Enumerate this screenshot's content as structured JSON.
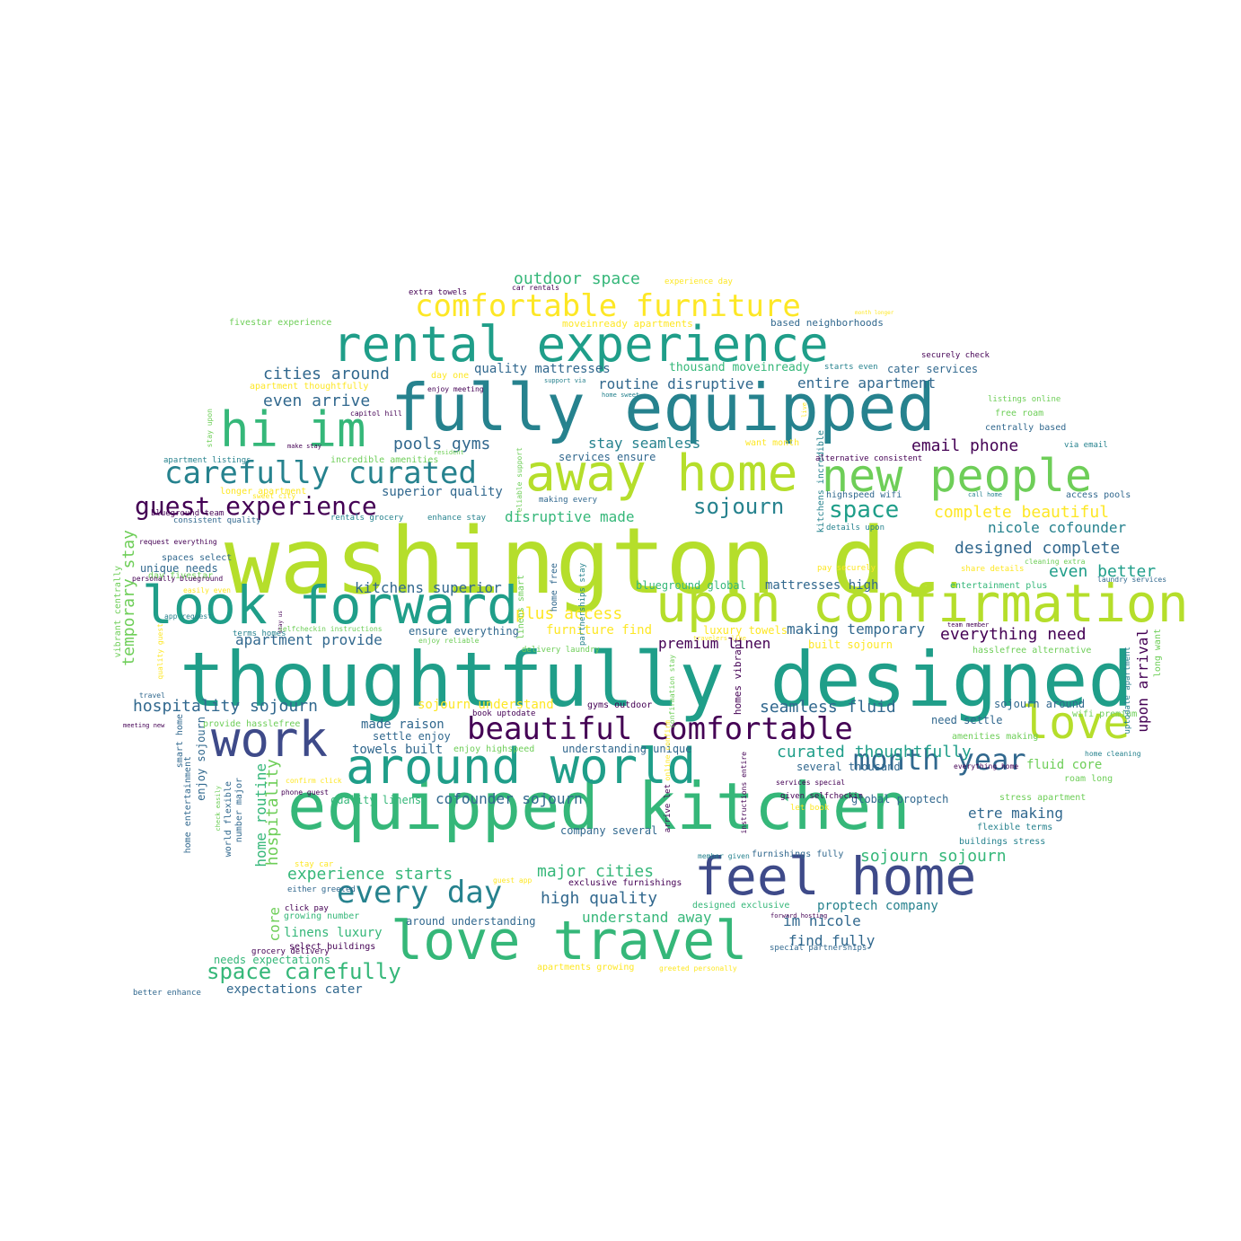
{
  "word_cloud": {
    "palette": {
      "dark_purple": "#440154",
      "indigo": "#3e4a89",
      "blue": "#31688e",
      "teal": "#26828e",
      "green_teal": "#1f9e89",
      "green": "#35b779",
      "light_green": "#6ece58",
      "lime": "#b5de2b",
      "yellow": "#fde725"
    },
    "words": [
      {
        "text": "washington dc",
        "color": "#b5de2b"
      },
      {
        "text": "thoughtfully designed",
        "color": "#1f9e89"
      },
      {
        "text": "fully equipped",
        "color": "#26828e"
      },
      {
        "text": "equipped kitchen",
        "color": "#35b779"
      },
      {
        "text": "rental experience",
        "color": "#1f9e89"
      },
      {
        "text": "around world",
        "color": "#1f9e89"
      },
      {
        "text": "away home",
        "color": "#b5de2b"
      },
      {
        "text": "new people",
        "color": "#6ece58"
      },
      {
        "text": "love travel",
        "color": "#35b779"
      },
      {
        "text": "look forward",
        "color": "#1f9e89"
      },
      {
        "text": "upon confirmation",
        "color": "#b5de2b"
      },
      {
        "text": "feel home",
        "color": "#3e4a89"
      },
      {
        "text": "hi im",
        "color": "#35b779"
      },
      {
        "text": "work",
        "color": "#3e4a89"
      },
      {
        "text": "love",
        "color": "#b5de2b"
      },
      {
        "text": "comfortable furniture",
        "color": "#fde725"
      },
      {
        "text": "beautiful comfortable",
        "color": "#440154"
      },
      {
        "text": "carefully curated",
        "color": "#26828e"
      },
      {
        "text": "guest experience",
        "color": "#440154"
      },
      {
        "text": "month year",
        "color": "#31688e"
      },
      {
        "text": "every day",
        "color": "#26828e"
      },
      {
        "text": "space carefully",
        "color": "#35b779"
      },
      {
        "text": "sojourn",
        "color": "#26828e"
      },
      {
        "text": "space",
        "color": "#1f9e89"
      },
      {
        "text": "outdoor space",
        "color": "#35b779"
      },
      {
        "text": "cities around",
        "color": "#31688e"
      },
      {
        "text": "even arrive",
        "color": "#31688e"
      },
      {
        "text": "pools gyms",
        "color": "#31688e"
      },
      {
        "text": "complete beautiful",
        "color": "#fde725"
      },
      {
        "text": "nicole cofounder",
        "color": "#26828e"
      },
      {
        "text": "designed complete",
        "color": "#31688e"
      },
      {
        "text": "even better",
        "color": "#1f9e89"
      },
      {
        "text": "email phone",
        "color": "#440154"
      },
      {
        "text": "everything need",
        "color": "#440154"
      },
      {
        "text": "seamless fluid",
        "color": "#31688e"
      },
      {
        "text": "curated thoughtfully",
        "color": "#1f9e89"
      },
      {
        "text": "sojourn sojourn",
        "color": "#35b779"
      },
      {
        "text": "hospitality sojourn",
        "color": "#31688e"
      },
      {
        "text": "apartment provide",
        "color": "#31688e"
      },
      {
        "text": "kitchens superior",
        "color": "#31688e"
      },
      {
        "text": "plus access",
        "color": "#fde725"
      },
      {
        "text": "disruptive made",
        "color": "#35b779"
      },
      {
        "text": "superior quality",
        "color": "#31688e"
      },
      {
        "text": "quality mattresses",
        "color": "#31688e"
      },
      {
        "text": "routine disruptive",
        "color": "#31688e"
      },
      {
        "text": "entire apartment",
        "color": "#31688e"
      },
      {
        "text": "stay seamless",
        "color": "#26828e"
      },
      {
        "text": "high quality",
        "color": "#31688e"
      },
      {
        "text": "major cities",
        "color": "#35b779"
      },
      {
        "text": "experience starts",
        "color": "#35b779"
      },
      {
        "text": "understand away",
        "color": "#35b779"
      },
      {
        "text": "im nicole",
        "color": "#31688e"
      },
      {
        "text": "find fully",
        "color": "#31688e"
      },
      {
        "text": "proptech company",
        "color": "#26828e"
      },
      {
        "text": "making temporary",
        "color": "#31688e"
      },
      {
        "text": "mattresses high",
        "color": "#31688e"
      },
      {
        "text": "premium linen",
        "color": "#440154"
      },
      {
        "text": "upon arrival",
        "color": "#440154"
      },
      {
        "text": "hospitality",
        "color": "#6ece58"
      },
      {
        "text": "home routine",
        "color": "#35b779"
      },
      {
        "text": "core",
        "color": "#6ece58"
      },
      {
        "text": "temporary stay",
        "color": "#6ece58"
      },
      {
        "text": "linens luxury",
        "color": "#35b779"
      },
      {
        "text": "expectations cater",
        "color": "#31688e"
      },
      {
        "text": "etre making",
        "color": "#31688e"
      },
      {
        "text": "fluid core",
        "color": "#6ece58"
      },
      {
        "text": "made raison",
        "color": "#31688e"
      },
      {
        "text": "towels built",
        "color": "#31688e"
      },
      {
        "text": "settle enjoy",
        "color": "#31688e"
      },
      {
        "text": "cofounder sojourn",
        "color": "#31688e"
      },
      {
        "text": "quality linens",
        "color": "#35b779"
      },
      {
        "text": "sojourn understand",
        "color": "#fde725"
      },
      {
        "text": "ensure everything",
        "color": "#31688e"
      },
      {
        "text": "furniture find",
        "color": "#fde725"
      },
      {
        "text": "luxury towels",
        "color": "#fde725"
      },
      {
        "text": "services ensure",
        "color": "#31688e"
      },
      {
        "text": "thousand moveinready",
        "color": "#35b779"
      },
      {
        "text": "cater services",
        "color": "#31688e"
      },
      {
        "text": "blueground global",
        "color": "#35b779"
      },
      {
        "text": "unique needs",
        "color": "#31688e"
      },
      {
        "text": "built sojourn",
        "color": "#fde725"
      },
      {
        "text": "need settle",
        "color": "#31688e"
      },
      {
        "text": "several thousand",
        "color": "#31688e"
      },
      {
        "text": "global proptech",
        "color": "#31688e"
      },
      {
        "text": "sojourn around",
        "color": "#31688e"
      },
      {
        "text": "understanding unique",
        "color": "#31688e"
      },
      {
        "text": "company several",
        "color": "#31688e"
      },
      {
        "text": "around understanding",
        "color": "#31688e"
      },
      {
        "text": "needs expectations",
        "color": "#35b779"
      },
      {
        "text": "enjoy sojourn",
        "color": "#31688e"
      },
      {
        "text": "moveinready apartments",
        "color": "#fde725"
      },
      {
        "text": "based neighborhoods",
        "color": "#31688e"
      },
      {
        "text": "fivestar experience",
        "color": "#6ece58"
      },
      {
        "text": "apartment thoughtfully",
        "color": "#fde725"
      },
      {
        "text": "day one",
        "color": "#fde725"
      },
      {
        "text": "want month",
        "color": "#fde725"
      },
      {
        "text": "incredible amenities",
        "color": "#6ece58"
      },
      {
        "text": "making every",
        "color": "#31688e"
      },
      {
        "text": "longer apartment",
        "color": "#fde725"
      },
      {
        "text": "free roam",
        "color": "#6ece58"
      },
      {
        "text": "centrally based",
        "color": "#31688e"
      },
      {
        "text": "hasslefree alternative",
        "color": "#6ece58"
      },
      {
        "text": "long want",
        "color": "#6ece58"
      },
      {
        "text": "roam long",
        "color": "#6ece58"
      },
      {
        "text": "flexible terms",
        "color": "#26828e"
      },
      {
        "text": "buildings stress",
        "color": "#26828e"
      },
      {
        "text": "stress apartment",
        "color": "#6ece58"
      },
      {
        "text": "access pools",
        "color": "#31688e"
      },
      {
        "text": "highspeed wifi",
        "color": "#31688e"
      },
      {
        "text": "amenities making",
        "color": "#6ece58"
      },
      {
        "text": "entertainment plus",
        "color": "#35b779"
      },
      {
        "text": "laundry services",
        "color": "#31688e"
      },
      {
        "text": "wifi premium",
        "color": "#6ece58"
      },
      {
        "text": "spaces select",
        "color": "#31688e"
      },
      {
        "text": "day fivestar",
        "color": "#6ece58"
      },
      {
        "text": "consistent quality",
        "color": "#31688e"
      },
      {
        "text": "blueground team",
        "color": "#440154"
      },
      {
        "text": "rentals grocery",
        "color": "#26828e"
      },
      {
        "text": "enhance stay",
        "color": "#26828e"
      },
      {
        "text": "request everything",
        "color": "#440154"
      },
      {
        "text": "personally blueground",
        "color": "#440154"
      },
      {
        "text": "vibrant centrally",
        "color": "#6ece58"
      },
      {
        "text": "smart home",
        "color": "#31688e"
      },
      {
        "text": "home entertainment",
        "color": "#31688e"
      },
      {
        "text": "number major",
        "color": "#31688e"
      },
      {
        "text": "world flexible",
        "color": "#31688e"
      },
      {
        "text": "grocery delivery",
        "color": "#440154"
      },
      {
        "text": "growing number",
        "color": "#35b779"
      },
      {
        "text": "select buildings",
        "color": "#440154"
      },
      {
        "text": "apartments growing",
        "color": "#fde725"
      },
      {
        "text": "special partnerships",
        "color": "#31688e"
      },
      {
        "text": "better enhance",
        "color": "#31688e"
      },
      {
        "text": "exclusive furnishings",
        "color": "#440154"
      },
      {
        "text": "furnishings fully",
        "color": "#31688e"
      },
      {
        "text": "designed exclusive",
        "color": "#35b779"
      },
      {
        "text": "gyms outdoor",
        "color": "#440154"
      },
      {
        "text": "book uptodate",
        "color": "#440154"
      },
      {
        "text": "enjoy highspeed",
        "color": "#6ece58"
      },
      {
        "text": "provide hasslefree",
        "color": "#6ece58"
      },
      {
        "text": "homes vibrant",
        "color": "#440154"
      },
      {
        "text": "kitchens incredible",
        "color": "#26828e"
      },
      {
        "text": "alternative consistent",
        "color": "#440154"
      },
      {
        "text": "extra towels",
        "color": "#440154"
      },
      {
        "text": "car rentals",
        "color": "#440154"
      },
      {
        "text": "experience day",
        "color": "#fde725"
      },
      {
        "text": "month longer",
        "color": "#fde725"
      },
      {
        "text": "securely check",
        "color": "#440154"
      },
      {
        "text": "starts even",
        "color": "#26828e"
      },
      {
        "text": "listings online",
        "color": "#6ece58"
      },
      {
        "text": "via email",
        "color": "#26828e"
      },
      {
        "text": "call home",
        "color": "#26828e"
      },
      {
        "text": "details upon",
        "color": "#26828e"
      },
      {
        "text": "pay securely",
        "color": "#fde725"
      },
      {
        "text": "share details",
        "color": "#fde725"
      },
      {
        "text": "cleaning extra",
        "color": "#6ece58"
      },
      {
        "text": "team member",
        "color": "#440154"
      },
      {
        "text": "uptodate apartment",
        "color": "#26828e"
      },
      {
        "text": "home cleaning",
        "color": "#26828e"
      },
      {
        "text": "everything home",
        "color": "#440154"
      },
      {
        "text": "capitol hill",
        "color": "#440154"
      },
      {
        "text": "enjoy meeting",
        "color": "#440154"
      },
      {
        "text": "support via",
        "color": "#26828e"
      },
      {
        "text": "home sweet",
        "color": "#26828e"
      },
      {
        "text": "make stay",
        "color": "#440154"
      },
      {
        "text": "resident",
        "color": "#6ece58"
      },
      {
        "text": "sweet city",
        "color": "#fde725"
      },
      {
        "text": "easily even",
        "color": "#fde725"
      },
      {
        "text": "app request",
        "color": "#26828e"
      },
      {
        "text": "terms homes",
        "color": "#26828e"
      },
      {
        "text": "selfcheckin instructions",
        "color": "#6ece58"
      },
      {
        "text": "enjoy reliable",
        "color": "#6ece58"
      },
      {
        "text": "stay us",
        "color": "#440154"
      },
      {
        "text": "quality guest",
        "color": "#fde725"
      },
      {
        "text": "meeting new",
        "color": "#440154"
      },
      {
        "text": "travel",
        "color": "#31688e"
      },
      {
        "text": "confirm click",
        "color": "#fde725"
      },
      {
        "text": "phone guest",
        "color": "#440154"
      },
      {
        "text": "check easily",
        "color": "#6ece58"
      },
      {
        "text": "click pay",
        "color": "#440154"
      },
      {
        "text": "either greeted",
        "color": "#31688e"
      },
      {
        "text": "stay car",
        "color": "#fde725"
      },
      {
        "text": "guest app",
        "color": "#fde725"
      },
      {
        "text": "greeted personally",
        "color": "#fde725"
      },
      {
        "text": "let book",
        "color": "#fde725"
      },
      {
        "text": "member given",
        "color": "#26828e"
      },
      {
        "text": "forward hosting",
        "color": "#440154"
      },
      {
        "text": "given selfcheckin",
        "color": "#440154"
      },
      {
        "text": "services special",
        "color": "#440154"
      },
      {
        "text": "instructions entire",
        "color": "#440154"
      },
      {
        "text": "arrive let",
        "color": "#440154"
      },
      {
        "text": "online confirm",
        "color": "#fde725"
      },
      {
        "text": "travelers like",
        "color": "#fde725"
      },
      {
        "text": "confirmation stay",
        "color": "#6ece58"
      },
      {
        "text": "delivery laundry",
        "color": "#6ece58"
      },
      {
        "text": "partnerships stay",
        "color": "#26828e"
      },
      {
        "text": "linens smart",
        "color": "#6ece58"
      },
      {
        "text": "home free",
        "color": "#31688e"
      },
      {
        "text": "reliable support",
        "color": "#6ece58"
      },
      {
        "text": "stay upon",
        "color": "#6ece58"
      },
      {
        "text": "apartment listings",
        "color": "#26828e"
      },
      {
        "text": "live",
        "color": "#fde725"
      }
    ]
  }
}
